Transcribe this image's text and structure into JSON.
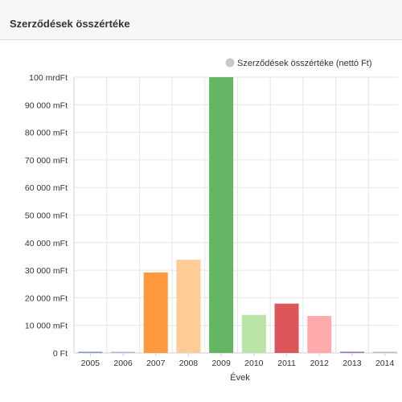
{
  "panel": {
    "title": "Szerződések összértéke"
  },
  "chart_data": {
    "type": "bar",
    "xlabel": "Évek",
    "ylabel": "",
    "legend": {
      "label": "Szerződések összértéke (nettó Ft)",
      "position": "top-right",
      "color": "#c8c8c8"
    },
    "grid": true,
    "ylim": [
      0,
      100000
    ],
    "yticks": [
      0,
      10000,
      20000,
      30000,
      40000,
      50000,
      60000,
      70000,
      80000,
      90000,
      100000
    ],
    "ytick_labels": [
      "0 Ft",
      "10 000 mFt",
      "20 000 mFt",
      "30 000 mFt",
      "40 000 mFt",
      "50 000 mFt",
      "60 000 mFt",
      "70 000 mFt",
      "80 000 mFt",
      "90 000 mFt",
      "100 mrdFt"
    ],
    "categories": [
      "2005",
      "2006",
      "2007",
      "2008",
      "2009",
      "2010",
      "2011",
      "2012",
      "2013",
      "2014"
    ],
    "values": [
      80,
      60,
      29200,
      33800,
      100000,
      13800,
      17900,
      13400,
      120,
      100
    ],
    "colors": [
      "#7b8fd6",
      "#a7b6ea",
      "#ff9334",
      "#ffc890",
      "#5cb25d",
      "#b4e3a2",
      "#d94d4f",
      "#ffa7a7",
      "#9467bd",
      "#c5b0d5"
    ],
    "value_unit": "mFt"
  }
}
